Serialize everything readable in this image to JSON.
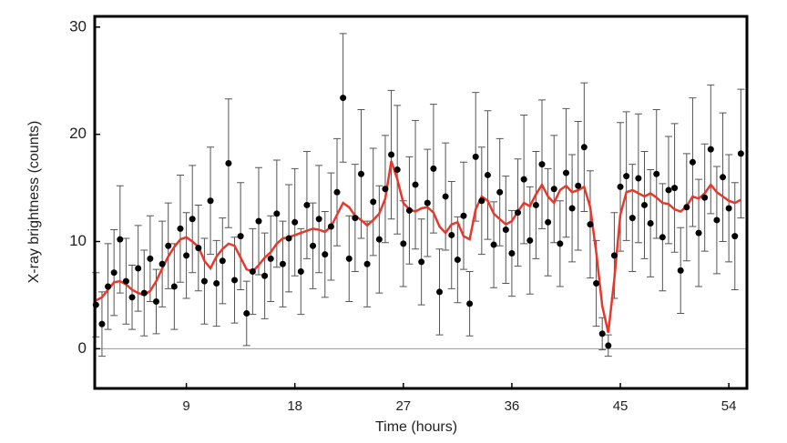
{
  "chart_data": {
    "type": "scatter",
    "xlabel": "Time (hours)",
    "ylabel": "X-ray brightness (counts)",
    "xlim": [
      1.4,
      55.5
    ],
    "ylim": [
      -3.7,
      31
    ],
    "xticks": [
      9,
      18,
      27,
      36,
      45,
      54
    ],
    "yticks": [
      0,
      10,
      20,
      30
    ],
    "x": [
      1.5,
      2,
      2.5,
      3,
      3.5,
      4,
      4.5,
      5,
      5.5,
      6,
      6.5,
      7,
      7.5,
      8,
      8.5,
      9,
      9.5,
      10,
      10.5,
      11,
      11.5,
      12,
      12.5,
      13,
      13.5,
      14,
      14.5,
      15,
      15.5,
      16,
      16.5,
      17,
      17.5,
      18,
      18.5,
      19,
      19.5,
      20,
      20.5,
      21,
      21.5,
      22,
      22.5,
      23,
      23.5,
      24,
      24.5,
      25,
      25.5,
      26,
      26.5,
      27,
      27.5,
      28,
      28.5,
      29,
      29.5,
      30,
      30.5,
      31,
      31.5,
      32,
      32.5,
      33,
      33.5,
      34,
      34.5,
      35,
      35.5,
      36,
      36.5,
      37,
      37.5,
      38,
      38.5,
      39,
      39.5,
      40,
      40.5,
      41,
      41.5,
      42,
      42.5,
      43,
      43.5,
      44,
      44.5,
      45,
      45.5,
      46,
      46.5,
      47,
      47.5,
      48,
      48.5,
      49,
      49.5,
      50,
      50.5,
      51,
      51.5,
      52,
      52.5,
      53,
      53.5,
      54,
      54.5,
      55
    ],
    "points": {
      "color": "#000000",
      "errorcolor": "#555555",
      "values": [
        4.1,
        2.3,
        5.8,
        7.1,
        10.2,
        6.3,
        4.8,
        7.5,
        5.2,
        8.4,
        4.4,
        7.9,
        9.6,
        5.8,
        11.2,
        8.7,
        12.1,
        9.4,
        6.3,
        13.8,
        6.1,
        8.2,
        17.3,
        6.4,
        10.5,
        3.3,
        7.2,
        11.9,
        6.8,
        8.4,
        12.6,
        7.9,
        10.3,
        11.8,
        7.2,
        13.4,
        9.6,
        12.1,
        8.8,
        11.4,
        14.6,
        23.4,
        8.4,
        12.2,
        16.3,
        7.9,
        13.7,
        10.2,
        14.9,
        18.1,
        16.7,
        9.8,
        12.9,
        15.3,
        8.1,
        13.6,
        16.8,
        5.3,
        14.2,
        10.6,
        8.3,
        12.4,
        4.2,
        17.9,
        13.8,
        16.2,
        9.7,
        14.6,
        11.1,
        8.9,
        12.7,
        15.8,
        10.1,
        13.4,
        17.2,
        11.8,
        14.9,
        9.8,
        16.4,
        13.1,
        15.2,
        18.8,
        11.6,
        6.1,
        1.4,
        0.3,
        8.7,
        15.1,
        16.1,
        12.2,
        15.9,
        13.4,
        11.7,
        16.3,
        10.4,
        14.8,
        15.0,
        7.3,
        13.2,
        17.4,
        10.8,
        14.1,
        18.6,
        12.0,
        16.0,
        13.1,
        10.5,
        18.2
      ],
      "errors": [
        3,
        3,
        4,
        4,
        5,
        4,
        3,
        4,
        4,
        4,
        3,
        4,
        4,
        4,
        5,
        4,
        5,
        4,
        4,
        5,
        4,
        4,
        6,
        4,
        5,
        3,
        4,
        5,
        4,
        4,
        5,
        4,
        5,
        5,
        4,
        5,
        4,
        5,
        4,
        5,
        5,
        6,
        4,
        5,
        6,
        4,
        5,
        5,
        5,
        6,
        6,
        4,
        5,
        6,
        4,
        5,
        6,
        4,
        5,
        5,
        4,
        5,
        3,
        6,
        5,
        6,
        4,
        5,
        5,
        4,
        5,
        6,
        5,
        5,
        6,
        5,
        5,
        4,
        6,
        5,
        6,
        6,
        5,
        4,
        1.5,
        1,
        4,
        6,
        6,
        5,
        6,
        5,
        5,
        6,
        5,
        5,
        6,
        4,
        5,
        6,
        5,
        5,
        6,
        5,
        6,
        5,
        5,
        6
      ]
    },
    "smooth": {
      "color": "#e8382b",
      "values": [
        4.5,
        4.8,
        5.5,
        6.2,
        6.3,
        6.0,
        5.5,
        5.2,
        5.0,
        5.4,
        6.3,
        7.5,
        8.6,
        9.5,
        10.2,
        10.4,
        10.0,
        9.5,
        8.2,
        7.5,
        8.6,
        9.3,
        9.8,
        9.6,
        8.5,
        7.4,
        7.2,
        7.8,
        8.5,
        9.0,
        9.8,
        10.3,
        10.4,
        10.6,
        10.8,
        11.0,
        11.2,
        11.1,
        10.9,
        11.4,
        12.5,
        13.6,
        13.2,
        12.4,
        12.0,
        11.5,
        12.0,
        12.6,
        14.0,
        17.5,
        15.8,
        13.6,
        13.0,
        12.8,
        13.1,
        13.2,
        12.7,
        11.4,
        10.8,
        11.6,
        11.8,
        10.5,
        10.2,
        13.0,
        14.2,
        13.8,
        12.6,
        12.1,
        11.6,
        11.9,
        12.8,
        13.6,
        13.3,
        14.4,
        15.3,
        14.2,
        13.6,
        14.8,
        15.2,
        14.6,
        14.8,
        15.1,
        13.2,
        9.0,
        4.0,
        1.5,
        6.5,
        12.5,
        14.6,
        14.8,
        14.5,
        14.2,
        14.5,
        14.1,
        13.6,
        13.5,
        13.0,
        12.8,
        13.3,
        14.2,
        14.0,
        14.5,
        15.3,
        14.6,
        14.2,
        13.8,
        13.6,
        13.9
      ]
    }
  }
}
